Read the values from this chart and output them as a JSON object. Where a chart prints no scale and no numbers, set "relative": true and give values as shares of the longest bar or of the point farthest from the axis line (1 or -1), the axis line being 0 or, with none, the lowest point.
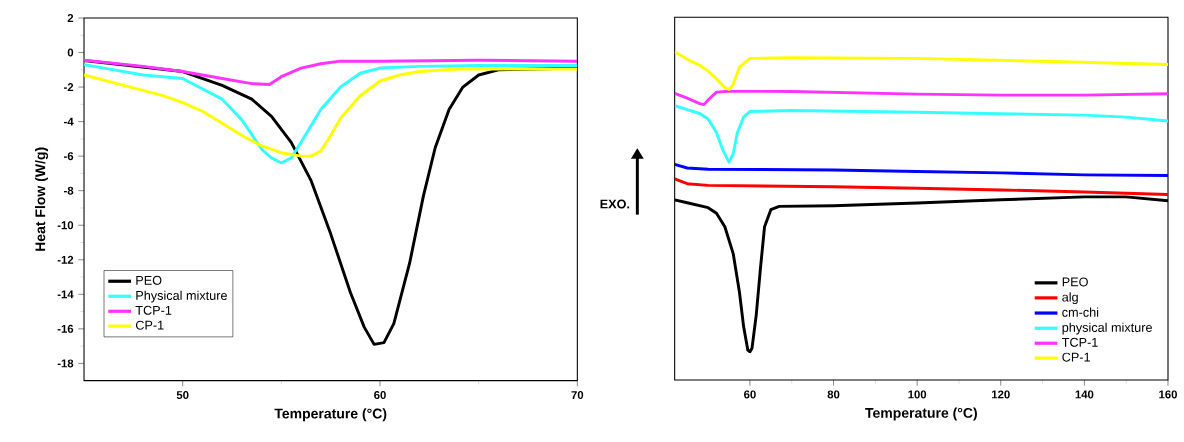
{
  "chart_data": [
    {
      "type": "line",
      "xlabel": "Temperature (°C)",
      "ylabel": "Heat Flow (W/g)",
      "xlim": [
        45,
        70
      ],
      "xticks": [
        50,
        60,
        70
      ],
      "ylim": [
        -19,
        2
      ],
      "yticks": [
        -18,
        -16,
        -14,
        -12,
        -10,
        -8,
        -6,
        -4,
        -2,
        0,
        2
      ],
      "legend": "bottom left",
      "series": [
        {
          "name": "PEO",
          "color": "#000000",
          "x": [
            45,
            50,
            52,
            53.5,
            54.5,
            55.5,
            56.5,
            57.5,
            58.5,
            59.2,
            59.7,
            60.2,
            60.7,
            61.5,
            62.2,
            62.8,
            63.5,
            64.2,
            65,
            66,
            68,
            70
          ],
          "values": [
            -0.46,
            -1.1,
            -1.9,
            -2.7,
            -3.7,
            -5.2,
            -7.4,
            -10.5,
            -13.9,
            -15.9,
            -16.9,
            -16.8,
            -15.7,
            -12.2,
            -8.3,
            -5.5,
            -3.3,
            -2.0,
            -1.3,
            -1.0,
            null,
            -0.9
          ]
        },
        {
          "name": "Physical mixture",
          "color": "#33ffff",
          "x": [
            45,
            48,
            50,
            52,
            53,
            54,
            54.5,
            55,
            55.5,
            56,
            57,
            58,
            59,
            60,
            62,
            65,
            70
          ],
          "values": [
            -0.7,
            -1.3,
            -1.5,
            -2.7,
            -3.9,
            -5.6,
            -6.1,
            -6.4,
            -6.1,
            -5.2,
            -3.3,
            -2.0,
            -1.2,
            -0.9,
            -0.8,
            -0.75,
            -0.75
          ]
        },
        {
          "name": "TCP-1",
          "color": "#ff33ff",
          "x": [
            45,
            48,
            50,
            52,
            53.5,
            54.4,
            55,
            56,
            57,
            58,
            60,
            65,
            70
          ],
          "values": [
            -0.45,
            -0.8,
            -1.1,
            -1.5,
            -1.8,
            -1.85,
            -1.4,
            -0.9,
            -0.65,
            -0.5,
            -0.5,
            -0.45,
            -0.5
          ]
        },
        {
          "name": "CP-1",
          "color": "#ffff00",
          "x": [
            45,
            47,
            49,
            50,
            51,
            52,
            53,
            54,
            55,
            56,
            56.5,
            57,
            57.5,
            58,
            59,
            60,
            61,
            62,
            64,
            70
          ],
          "values": [
            -1.3,
            -1.9,
            -2.5,
            -2.9,
            -3.4,
            -4.1,
            -4.8,
            -5.4,
            -5.8,
            -6.0,
            -6.0,
            -5.7,
            -4.8,
            -3.8,
            -2.5,
            -1.65,
            -1.3,
            -1.1,
            -0.95,
            -0.95
          ]
        }
      ]
    },
    {
      "type": "line",
      "relative": true,
      "xlabel": "Temperature (°C)",
      "xlim": [
        42,
        160
      ],
      "xticks": [
        60,
        80,
        100,
        120,
        140,
        160
      ],
      "legend": "bottom right",
      "annotations": [
        "EXO."
      ],
      "series": [
        {
          "name": "PEO",
          "color": "#000000",
          "x": [
            42,
            45,
            50,
            52,
            54,
            56,
            57.5,
            58.5,
            59.5,
            60,
            60.5,
            61.5,
            62.5,
            63.5,
            65,
            67,
            80,
            100,
            120,
            140,
            150,
            160
          ],
          "values": [
            0.549,
            0.54,
            0.525,
            0.508,
            0.467,
            0.385,
            0.267,
            0.162,
            0.091,
            0.086,
            0.097,
            0.197,
            0.338,
            0.467,
            0.519,
            0.529,
            0.531,
            0.539,
            0.549,
            0.558,
            0.558,
            0.546
          ]
        },
        {
          "name": "alg",
          "color": "#ff0000",
          "x": [
            42,
            45,
            50,
            80,
            100,
            120,
            140,
            160
          ],
          "values": [
            0.613,
            0.598,
            0.593,
            0.589,
            0.584,
            0.579,
            0.573,
            0.565
          ]
        },
        {
          "name": "cm-chi",
          "color": "#0000ff",
          "x": [
            42,
            45,
            50,
            80,
            100,
            120,
            140,
            160
          ],
          "values": [
            0.657,
            0.646,
            0.642,
            0.64,
            0.635,
            0.631,
            0.625,
            0.623
          ]
        },
        {
          "name": "physical mixture",
          "color": "#33ffff",
          "x": [
            42,
            45,
            48,
            50,
            52,
            53.5,
            55,
            56,
            57,
            58.5,
            60,
            70,
            100,
            120,
            140,
            150,
            160
          ],
          "values": [
            0.836,
            0.824,
            0.812,
            0.795,
            0.754,
            0.701,
            0.664,
            0.689,
            0.754,
            0.801,
            0.818,
            0.821,
            0.816,
            0.811,
            0.807,
            0.801,
            0.789
          ]
        },
        {
          "name": "TCP-1",
          "color": "#ff33ff",
          "x": [
            42,
            45,
            48,
            49,
            50,
            52,
            55,
            70,
            100,
            120,
            140,
            160
          ],
          "values": [
            0.873,
            0.859,
            0.842,
            0.839,
            0.853,
            0.877,
            0.88,
            0.879,
            0.871,
            0.868,
            0.868,
            0.872
          ]
        },
        {
          "name": "CP-1",
          "color": "#ffff00",
          "x": [
            42,
            45,
            48,
            50,
            52,
            54,
            55,
            56,
            57.5,
            60,
            70,
            100,
            130,
            160
          ],
          "values": [
            1.0,
            0.977,
            0.959,
            0.941,
            0.918,
            0.891,
            0.885,
            0.9,
            0.953,
            0.98,
            0.982,
            0.98,
            0.971,
            0.961
          ]
        }
      ]
    }
  ]
}
